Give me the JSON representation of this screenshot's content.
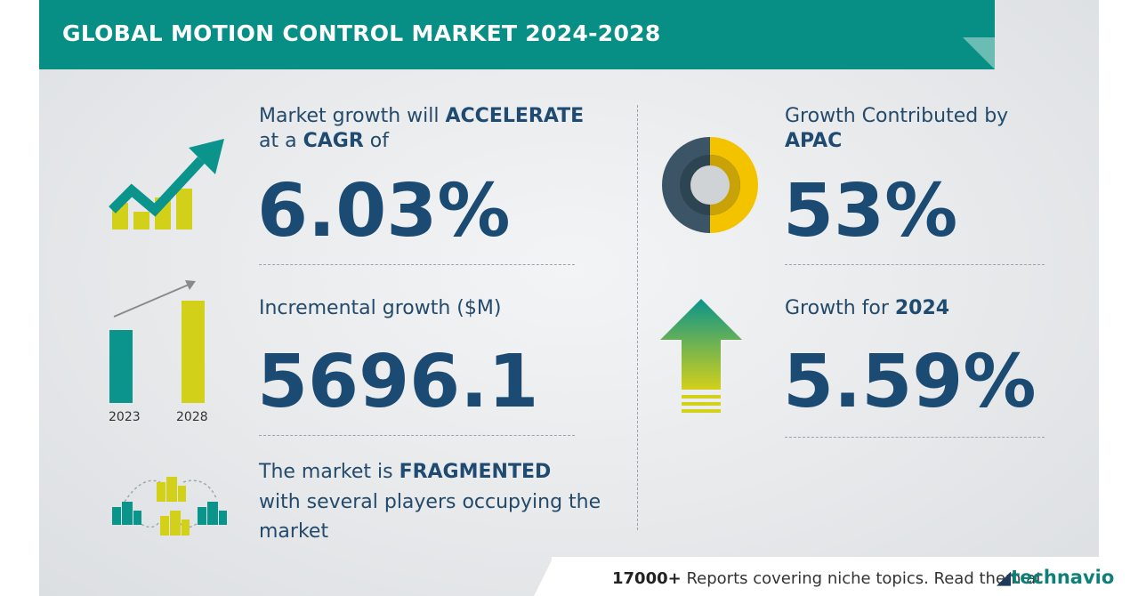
{
  "title": "GLOBAL MOTION CONTROL MARKET 2024-2028",
  "cagr": {
    "line1_prefix": "Market growth will",
    "line1_emphasis": "ACCELERATE",
    "line2_prefix": "at a",
    "line2_emphasis": "CAGR",
    "line2_suffix": "of",
    "value": "6.03%"
  },
  "incremental": {
    "label": "Incremental growth ($M)",
    "value": "5696.1",
    "bar_years": [
      "2023",
      "2028"
    ]
  },
  "fragmented": {
    "line1_prefix": "The market is",
    "line1_emphasis": "FRAGMENTED",
    "line2": "with several players occupying the",
    "line3": "market"
  },
  "apac": {
    "line1": "Growth Contributed by",
    "line2": "APAC",
    "value": "53%",
    "share_fraction": 0.53
  },
  "growth2024": {
    "label_prefix": "Growth for",
    "label_year": "2024",
    "value": "5.59%"
  },
  "footer": {
    "count": "17000+",
    "text": "Reports covering niche topics. Read them at",
    "brand": "technavio"
  },
  "colors": {
    "teal": "#078f86",
    "navy": "#1b4a72",
    "yellow": "#d3d01a",
    "donut_dark": "#3b5566",
    "donut_yellow": "#f3c300"
  }
}
